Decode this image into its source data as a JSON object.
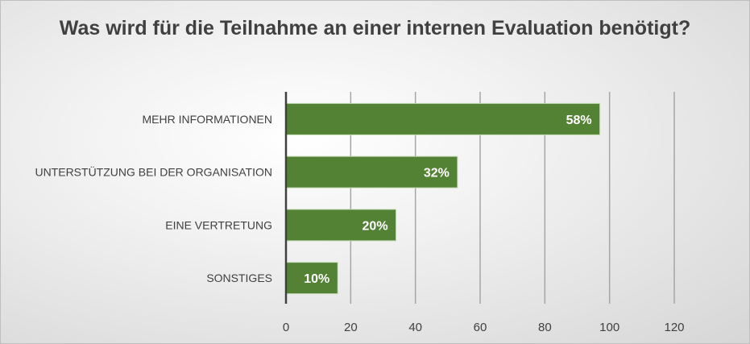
{
  "chart_data": {
    "type": "bar",
    "orientation": "horizontal",
    "title": "Was wird für die Teilnahme an einer internen Evaluation benötigt?",
    "categories": [
      "MEHR INFORMATIONEN",
      "UNTERSTÜTZUNG BEI DER ORGANISATION",
      "EINE VERTRETUNG",
      "SONSTIGES"
    ],
    "values": [
      97,
      53,
      34,
      16
    ],
    "data_labels": [
      "58%",
      "32%",
      "20%",
      "10%"
    ],
    "xlim": [
      0,
      120
    ],
    "xticks": [
      "0",
      "20",
      "40",
      "60",
      "80",
      "100",
      "120"
    ],
    "grid": true,
    "bar_color": "#548235"
  }
}
